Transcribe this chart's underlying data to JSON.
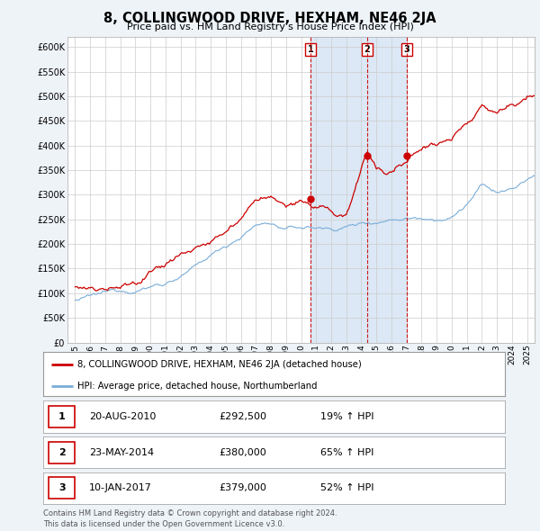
{
  "title": "8, COLLINGWOOD DRIVE, HEXHAM, NE46 2JA",
  "subtitle": "Price paid vs. HM Land Registry's House Price Index (HPI)",
  "ylim": [
    0,
    620000
  ],
  "yticks": [
    0,
    50000,
    100000,
    150000,
    200000,
    250000,
    300000,
    350000,
    400000,
    450000,
    500000,
    550000,
    600000
  ],
  "ytick_labels": [
    "£0",
    "£50K",
    "£100K",
    "£150K",
    "£200K",
    "£250K",
    "£300K",
    "£350K",
    "£400K",
    "£450K",
    "£500K",
    "£550K",
    "£600K"
  ],
  "sales": [
    {
      "date_num": 2010.64,
      "price": 292500,
      "label": "1"
    },
    {
      "date_num": 2014.39,
      "price": 380000,
      "label": "2"
    },
    {
      "date_num": 2017.03,
      "price": 379000,
      "label": "3"
    }
  ],
  "legend_line1": "8, COLLINGWOOD DRIVE, HEXHAM, NE46 2JA (detached house)",
  "legend_line2": "HPI: Average price, detached house, Northumberland",
  "table_rows": [
    {
      "num": "1",
      "date": "20-AUG-2010",
      "price": "£292,500",
      "hpi": "19% ↑ HPI"
    },
    {
      "num": "2",
      "date": "23-MAY-2014",
      "price": "£380,000",
      "hpi": "65% ↑ HPI"
    },
    {
      "num": "3",
      "date": "10-JAN-2017",
      "price": "£379,000",
      "hpi": "52% ↑ HPI"
    }
  ],
  "footer": "Contains HM Land Registry data © Crown copyright and database right 2024.\nThis data is licensed under the Open Government Licence v3.0.",
  "red_color": "#cc0000",
  "blue_color": "#7aadd8",
  "shade_color": "#dce8f5",
  "bg_color": "#eef3f8",
  "plot_bg": "#ffffff",
  "vline_color": "#cc0000",
  "xmin": 1995,
  "xmax": 2025.5
}
